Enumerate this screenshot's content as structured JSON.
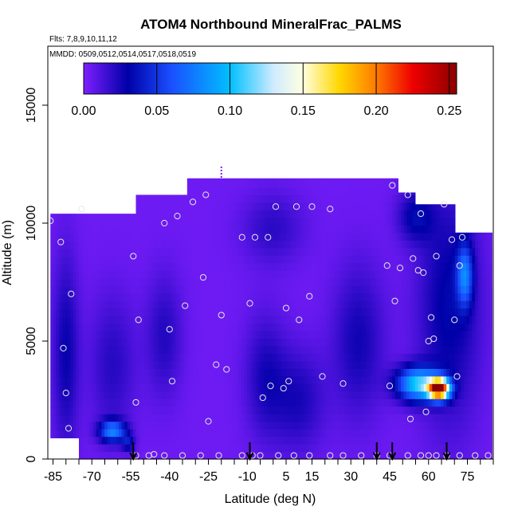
{
  "chart_data": {
    "type": "heatmap",
    "title": "ATOM4 Northbound MineralFrac_PALMS",
    "flights_note": "Flts: 7,8,9,10,11,12",
    "dates_note": "MMDD: 0509,0512,0514,0517,0518,0519",
    "xlabel": "Latitude (deg N)",
    "ylabel": "Altitude (m)",
    "xlim": [
      -87,
      85
    ],
    "ylim": [
      0,
      17500
    ],
    "x_ticks": [
      -85,
      -80,
      -75,
      -70,
      -65,
      -60,
      -55,
      -50,
      -45,
      -40,
      -35,
      -30,
      -25,
      -20,
      -15,
      -10,
      -5,
      0,
      5,
      10,
      15,
      20,
      25,
      30,
      35,
      40,
      45,
      50,
      55,
      60,
      65,
      70,
      75,
      80,
      85
    ],
    "x_tick_labels": [
      "-85",
      "-70",
      "-55",
      "-40",
      "-25",
      "-10",
      "5",
      "15",
      "30",
      "45",
      "60",
      "75"
    ],
    "x_tick_label_values": [
      -85,
      -70,
      -55,
      -40,
      -25,
      -10,
      5,
      15,
      30,
      45,
      60,
      75
    ],
    "y_ticks": [
      0,
      5000,
      10000,
      15000
    ],
    "y_tick_labels": [
      "0",
      "5000",
      "10000",
      "15000"
    ],
    "colorbar": {
      "min": 0,
      "max": 0.255,
      "tick_values": [
        0,
        0.05,
        0.1,
        0.15,
        0.2,
        0.25
      ],
      "tick_labels": [
        "0.00",
        "0.05",
        "0.10",
        "0.15",
        "0.20",
        "0.25"
      ],
      "stops": [
        {
          "v": 0.0,
          "color": "#7f1fff"
        },
        {
          "v": 0.03,
          "color": "#0000a8"
        },
        {
          "v": 0.06,
          "color": "#1a4fff"
        },
        {
          "v": 0.1,
          "color": "#00bfff"
        },
        {
          "v": 0.13,
          "color": "#d0ecff"
        },
        {
          "v": 0.15,
          "color": "#ffffe0"
        },
        {
          "v": 0.175,
          "color": "#ffd700"
        },
        {
          "v": 0.2,
          "color": "#ff7a00"
        },
        {
          "v": 0.225,
          "color": "#ee0000"
        },
        {
          "v": 0.255,
          "color": "#8b0000"
        }
      ]
    },
    "sample_points": [
      [
        -86,
        10100
      ],
      [
        -82,
        9200
      ],
      [
        -81,
        4700
      ],
      [
        -80,
        2800
      ],
      [
        -79,
        1300
      ],
      [
        -78,
        7000
      ],
      [
        -74,
        10600
      ],
      [
        -54,
        8600
      ],
      [
        -53,
        2400
      ],
      [
        -52,
        5900
      ],
      [
        -46,
        200
      ],
      [
        -42,
        10000
      ],
      [
        -40,
        5500
      ],
      [
        -39,
        3300
      ],
      [
        -37,
        10300
      ],
      [
        -34,
        6500
      ],
      [
        -31,
        10900
      ],
      [
        -27,
        7700
      ],
      [
        -26,
        11200
      ],
      [
        -25,
        1600
      ],
      [
        -22,
        4000
      ],
      [
        -20,
        6100
      ],
      [
        -18,
        3800
      ],
      [
        -12,
        9400
      ],
      [
        -9,
        6600
      ],
      [
        -7,
        9400
      ],
      [
        -4,
        2600
      ],
      [
        -2,
        9400
      ],
      [
        -1,
        3100
      ],
      [
        1,
        10700
      ],
      [
        4,
        3000
      ],
      [
        5,
        6400
      ],
      [
        6,
        3300
      ],
      [
        9,
        10700
      ],
      [
        10,
        5900
      ],
      [
        14,
        6900
      ],
      [
        15,
        10700
      ],
      [
        19,
        3500
      ],
      [
        22,
        10600
      ],
      [
        27,
        3200
      ],
      [
        44,
        8200
      ],
      [
        45,
        3100
      ],
      [
        46,
        11600
      ],
      [
        47,
        6700
      ],
      [
        49,
        8100
      ],
      [
        52,
        11200
      ],
      [
        53,
        1700
      ],
      [
        54,
        8500
      ],
      [
        56,
        8000
      ],
      [
        57,
        10400
      ],
      [
        58,
        7900
      ],
      [
        59,
        2000
      ],
      [
        60,
        5000
      ],
      [
        61,
        6000
      ],
      [
        62,
        5100
      ],
      [
        63,
        8600
      ],
      [
        66,
        10800
      ],
      [
        69,
        9300
      ],
      [
        70,
        5900
      ],
      [
        71,
        3500
      ],
      [
        72,
        8200
      ],
      [
        73,
        9400
      ]
    ],
    "surface_points_lat": [
      -53,
      -48,
      -42,
      -35,
      -28,
      -21,
      -12,
      -8,
      -5,
      2,
      8,
      14,
      22,
      27,
      34,
      40,
      45,
      52,
      57,
      60,
      63,
      67,
      72,
      78,
      83
    ],
    "flight_arrows_lat": [
      -54,
      -9,
      40,
      46,
      67
    ],
    "marker_top_lat": -20
  }
}
